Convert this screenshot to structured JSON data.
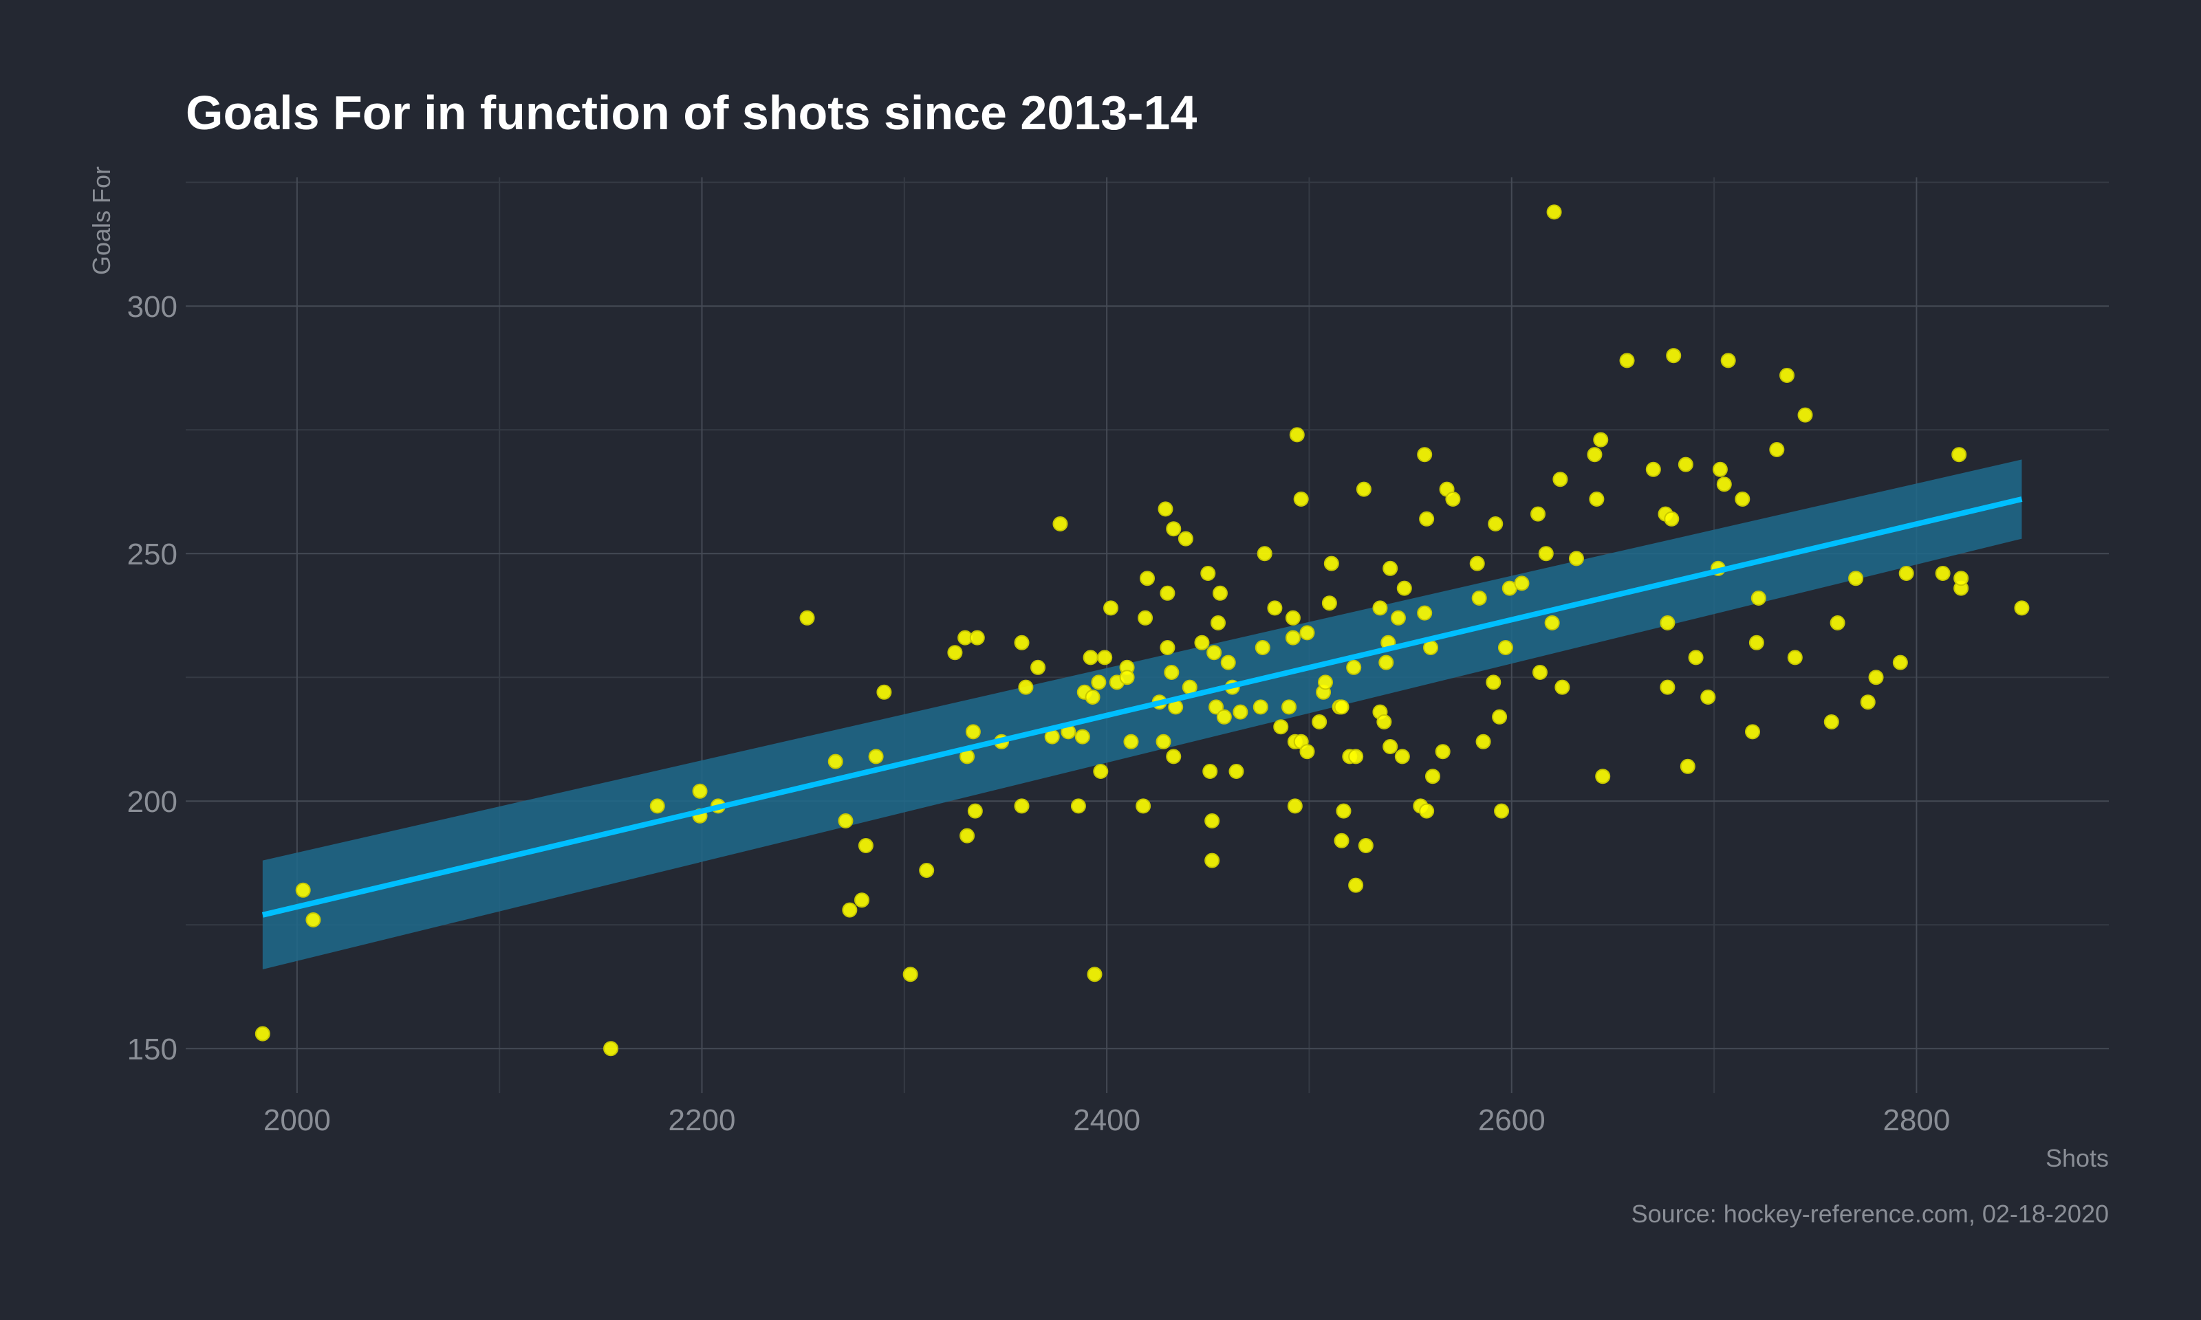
{
  "chart_data": {
    "type": "scatter",
    "title": "Goals For in function of shots since 2013-14",
    "xlabel": "Shots",
    "ylabel": "Goals For",
    "caption": "Source: hockey-reference.com, 02-18-2020",
    "xlim": [
      1945,
      2895
    ],
    "ylim": [
      141,
      326
    ],
    "x_ticks": [
      2000,
      2200,
      2400,
      2600,
      2800
    ],
    "y_ticks": [
      150,
      200,
      250,
      300
    ],
    "grid": true,
    "colors": {
      "background": "#242832",
      "points": "#ffff00",
      "point_outline": "#c8c800",
      "fit_line": "#00bfff",
      "confidence_band": "#1e6a8c"
    },
    "trend": {
      "method": "linear regression",
      "line": [
        [
          1983,
          177
        ],
        [
          2852,
          261
        ]
      ],
      "band_lower": [
        [
          1983,
          166
        ],
        [
          2852,
          253
        ]
      ],
      "band_upper": [
        [
          1983,
          188
        ],
        [
          2852,
          269
        ]
      ]
    },
    "points": [
      [
        1983,
        153
      ],
      [
        2003,
        182
      ],
      [
        2008,
        176
      ],
      [
        2155,
        150
      ],
      [
        2178,
        199
      ],
      [
        2199,
        202
      ],
      [
        2199,
        197
      ],
      [
        2208,
        199
      ],
      [
        2252,
        237
      ],
      [
        2266,
        208
      ],
      [
        2271,
        196
      ],
      [
        2273,
        178
      ],
      [
        2279,
        180
      ],
      [
        2281,
        191
      ],
      [
        2286,
        209
      ],
      [
        2290,
        222
      ],
      [
        2303,
        165
      ],
      [
        2311,
        186
      ],
      [
        2325,
        230
      ],
      [
        2330,
        233
      ],
      [
        2331,
        209
      ],
      [
        2331,
        193
      ],
      [
        2334,
        214
      ],
      [
        2335,
        198
      ],
      [
        2336,
        233
      ],
      [
        2348,
        212
      ],
      [
        2358,
        232
      ],
      [
        2358,
        199
      ],
      [
        2360,
        223
      ],
      [
        2366,
        227
      ],
      [
        2373,
        213
      ],
      [
        2377,
        256
      ],
      [
        2381,
        214
      ],
      [
        2386,
        199
      ],
      [
        2388,
        213
      ],
      [
        2389,
        222
      ],
      [
        2392,
        229
      ],
      [
        2393,
        221
      ],
      [
        2394,
        165
      ],
      [
        2396,
        224
      ],
      [
        2397,
        206
      ],
      [
        2399,
        229
      ],
      [
        2402,
        239
      ],
      [
        2405,
        224
      ],
      [
        2410,
        227
      ],
      [
        2410,
        225
      ],
      [
        2412,
        212
      ],
      [
        2418,
        199
      ],
      [
        2419,
        237
      ],
      [
        2420,
        245
      ],
      [
        2426,
        220
      ],
      [
        2428,
        212
      ],
      [
        2429,
        259
      ],
      [
        2430,
        231
      ],
      [
        2430,
        242
      ],
      [
        2432,
        226
      ],
      [
        2433,
        255
      ],
      [
        2434,
        219
      ],
      [
        2433,
        209
      ],
      [
        2439,
        253
      ],
      [
        2441,
        223
      ],
      [
        2447,
        232
      ],
      [
        2450,
        246
      ],
      [
        2451,
        206
      ],
      [
        2452,
        196
      ],
      [
        2452,
        188
      ],
      [
        2453,
        230
      ],
      [
        2454,
        219
      ],
      [
        2455,
        236
      ],
      [
        2456,
        242
      ],
      [
        2458,
        217
      ],
      [
        2460,
        228
      ],
      [
        2462,
        223
      ],
      [
        2464,
        206
      ],
      [
        2466,
        218
      ],
      [
        2476,
        219
      ],
      [
        2477,
        231
      ],
      [
        2478,
        250
      ],
      [
        2483,
        239
      ],
      [
        2486,
        215
      ],
      [
        2490,
        219
      ],
      [
        2492,
        233
      ],
      [
        2492,
        237
      ],
      [
        2493,
        212
      ],
      [
        2493,
        199
      ],
      [
        2494,
        274
      ],
      [
        2496,
        212
      ],
      [
        2496,
        261
      ],
      [
        2499,
        210
      ],
      [
        2499,
        234
      ],
      [
        2505,
        216
      ],
      [
        2507,
        222
      ],
      [
        2508,
        224
      ],
      [
        2510,
        240
      ],
      [
        2511,
        248
      ],
      [
        2515,
        219
      ],
      [
        2516,
        192
      ],
      [
        2516,
        219
      ],
      [
        2517,
        198
      ],
      [
        2520,
        209
      ],
      [
        2522,
        227
      ],
      [
        2523,
        209
      ],
      [
        2523,
        183
      ],
      [
        2527,
        263
      ],
      [
        2528,
        191
      ],
      [
        2535,
        218
      ],
      [
        2535,
        239
      ],
      [
        2537,
        216
      ],
      [
        2538,
        228
      ],
      [
        2539,
        232
      ],
      [
        2540,
        247
      ],
      [
        2540,
        211
      ],
      [
        2544,
        237
      ],
      [
        2546,
        209
      ],
      [
        2547,
        243
      ],
      [
        2555,
        199
      ],
      [
        2557,
        238
      ],
      [
        2558,
        198
      ],
      [
        2557,
        270
      ],
      [
        2558,
        257
      ],
      [
        2560,
        231
      ],
      [
        2561,
        205
      ],
      [
        2566,
        210
      ],
      [
        2568,
        263
      ],
      [
        2571,
        261
      ],
      [
        2583,
        248
      ],
      [
        2584,
        241
      ],
      [
        2586,
        212
      ],
      [
        2591,
        224
      ],
      [
        2592,
        256
      ],
      [
        2594,
        217
      ],
      [
        2595,
        198
      ],
      [
        2597,
        231
      ],
      [
        2599,
        243
      ],
      [
        2605,
        244
      ],
      [
        2613,
        258
      ],
      [
        2614,
        226
      ],
      [
        2617,
        250
      ],
      [
        2620,
        236
      ],
      [
        2621,
        319
      ],
      [
        2624,
        265
      ],
      [
        2625,
        223
      ],
      [
        2632,
        249
      ],
      [
        2641,
        270
      ],
      [
        2642,
        261
      ],
      [
        2644,
        273
      ],
      [
        2645,
        205
      ],
      [
        2657,
        289
      ],
      [
        2670,
        267
      ],
      [
        2676,
        258
      ],
      [
        2677,
        236
      ],
      [
        2677,
        223
      ],
      [
        2679,
        257
      ],
      [
        2680,
        290
      ],
      [
        2686,
        268
      ],
      [
        2687,
        207
      ],
      [
        2691,
        229
      ],
      [
        2697,
        221
      ],
      [
        2702,
        247
      ],
      [
        2703,
        267
      ],
      [
        2705,
        264
      ],
      [
        2707,
        289
      ],
      [
        2714,
        261
      ],
      [
        2719,
        214
      ],
      [
        2721,
        232
      ],
      [
        2722,
        241
      ],
      [
        2731,
        271
      ],
      [
        2736,
        286
      ],
      [
        2740,
        229
      ],
      [
        2745,
        278
      ],
      [
        2758,
        216
      ],
      [
        2761,
        236
      ],
      [
        2770,
        245
      ],
      [
        2776,
        220
      ],
      [
        2780,
        225
      ],
      [
        2792,
        228
      ],
      [
        2795,
        246
      ],
      [
        2813,
        246
      ],
      [
        2821,
        270
      ],
      [
        2822,
        243
      ],
      [
        2822,
        245
      ],
      [
        2852,
        239
      ]
    ]
  }
}
